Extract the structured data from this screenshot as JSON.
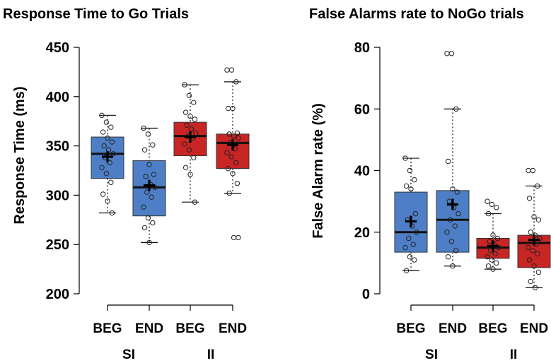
{
  "colors": {
    "SI": "#4e7fc6",
    "II": "#c82525",
    "median": "#111111",
    "whisker": "#111111",
    "point_stroke": "#222222"
  },
  "chart_data": [
    {
      "type": "box",
      "title": "Response Time to Go Trials",
      "ylabel": "Response Time (ms)",
      "ylim": [
        200,
        450
      ],
      "yticks": [
        200,
        250,
        300,
        350,
        400,
        450
      ],
      "grid": false,
      "boxes": [
        {
          "label": "BEG",
          "group": "SI",
          "q1": 317,
          "median": 342,
          "q3": 359,
          "whisker_low": 282,
          "whisker_high": 381,
          "mean": 339,
          "points": [
            381,
            374,
            369,
            364,
            358,
            354,
            350,
            346,
            342,
            338,
            333,
            328,
            322,
            313,
            301,
            294,
            282
          ]
        },
        {
          "label": "END",
          "group": "SI",
          "q1": 279,
          "median": 308,
          "q3": 335,
          "whisker_low": 252,
          "whisker_high": 368,
          "mean": 310,
          "points": [
            368,
            362,
            351,
            346,
            331,
            321,
            319,
            311,
            308,
            303,
            298,
            288,
            277,
            272,
            267,
            252
          ]
        },
        {
          "label": "BEG",
          "group": "II",
          "q1": 340,
          "median": 360,
          "q3": 374,
          "whisker_low": 293,
          "whisker_high": 412,
          "mean": 359,
          "points": [
            412,
            401,
            394,
            384,
            380,
            377,
            371,
            367,
            363,
            360,
            358,
            352,
            346,
            338,
            328,
            321,
            293
          ]
        },
        {
          "label": "END",
          "group": "II",
          "q1": 327,
          "median": 353,
          "q3": 362,
          "whisker_low": 302,
          "whisker_high": 415,
          "mean": 351,
          "points": [
            427,
            427,
            415,
            388,
            388,
            363,
            362,
            360,
            358,
            353,
            347,
            343,
            339,
            333,
            327,
            322,
            312,
            302,
            257,
            257
          ]
        }
      ],
      "groups": [
        "SI",
        "II"
      ]
    },
    {
      "type": "box",
      "title": "False Alarms rate to NoGo trials",
      "ylabel": "False Alarm rate (%)",
      "ylim": [
        0,
        80
      ],
      "yticks": [
        0,
        20,
        40,
        60,
        80
      ],
      "grid": false,
      "boxes": [
        {
          "label": "BEG",
          "group": "SI",
          "q1": 13.5,
          "median": 20,
          "q3": 33,
          "whisker_low": 7.5,
          "whisker_high": 44,
          "mean": 23.5,
          "points": [
            44,
            40,
            37,
            35,
            34,
            26,
            24,
            22,
            20,
            18,
            16,
            15,
            12,
            11,
            7.5
          ]
        },
        {
          "label": "END",
          "group": "SI",
          "q1": 13.5,
          "median": 24,
          "q3": 33.5,
          "whisker_low": 9,
          "whisker_high": 60,
          "mean": 29,
          "points": [
            78,
            78,
            60,
            43,
            34,
            33,
            30,
            28,
            26,
            24,
            22,
            20,
            17,
            14,
            12,
            9
          ]
        },
        {
          "label": "BEG",
          "group": "II",
          "q1": 11.5,
          "median": 15,
          "q3": 18,
          "whisker_low": 8,
          "whisker_high": 26,
          "mean": 15.5,
          "points": [
            30,
            29,
            28,
            26,
            19,
            18,
            17,
            16,
            15,
            14,
            13,
            12,
            11,
            10,
            9,
            8
          ]
        },
        {
          "label": "END",
          "group": "II",
          "q1": 8.5,
          "median": 16.5,
          "q3": 19,
          "whisker_low": 2,
          "whisker_high": 35,
          "mean": 17.5,
          "points": [
            40,
            40,
            35,
            31,
            25,
            24,
            20,
            19,
            18,
            17,
            16,
            15,
            14,
            13,
            11,
            9,
            7,
            4,
            2
          ]
        }
      ],
      "groups": [
        "SI",
        "II"
      ]
    }
  ]
}
